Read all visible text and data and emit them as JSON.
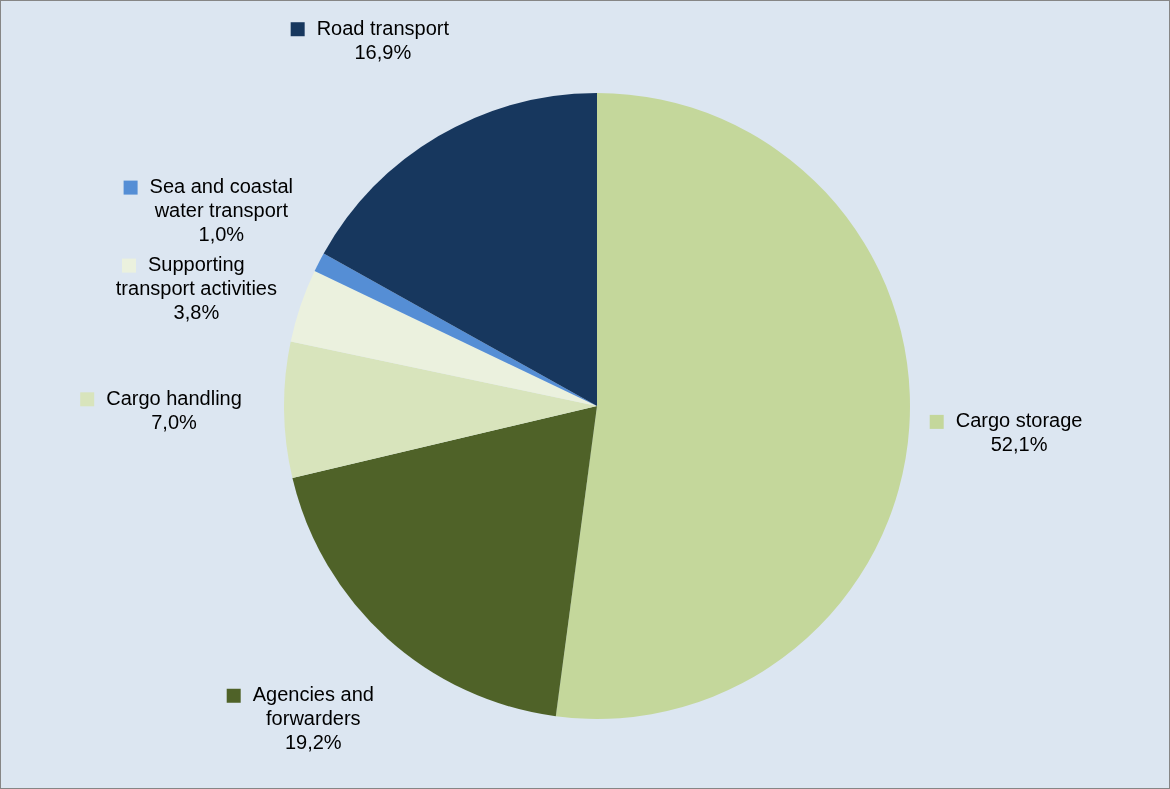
{
  "chart_data": {
    "type": "pie",
    "categories": [
      "Cargo storage",
      "Agencies and forwarders",
      "Cargo handling",
      "Supporting transport activities",
      "Sea and coastal water transport",
      "Road transport"
    ],
    "values": [
      52.1,
      19.2,
      7.0,
      3.8,
      1.0,
      16.9
    ],
    "value_labels": [
      "52,1%",
      "19,2%",
      "7,0%",
      "3,8%",
      "1,0%",
      "16,9%"
    ],
    "colors": [
      "#c4d79b",
      "#4f6228",
      "#d8e4bc",
      "#ebf1de",
      "#558ed5",
      "#17375e"
    ],
    "legend": "left"
  }
}
